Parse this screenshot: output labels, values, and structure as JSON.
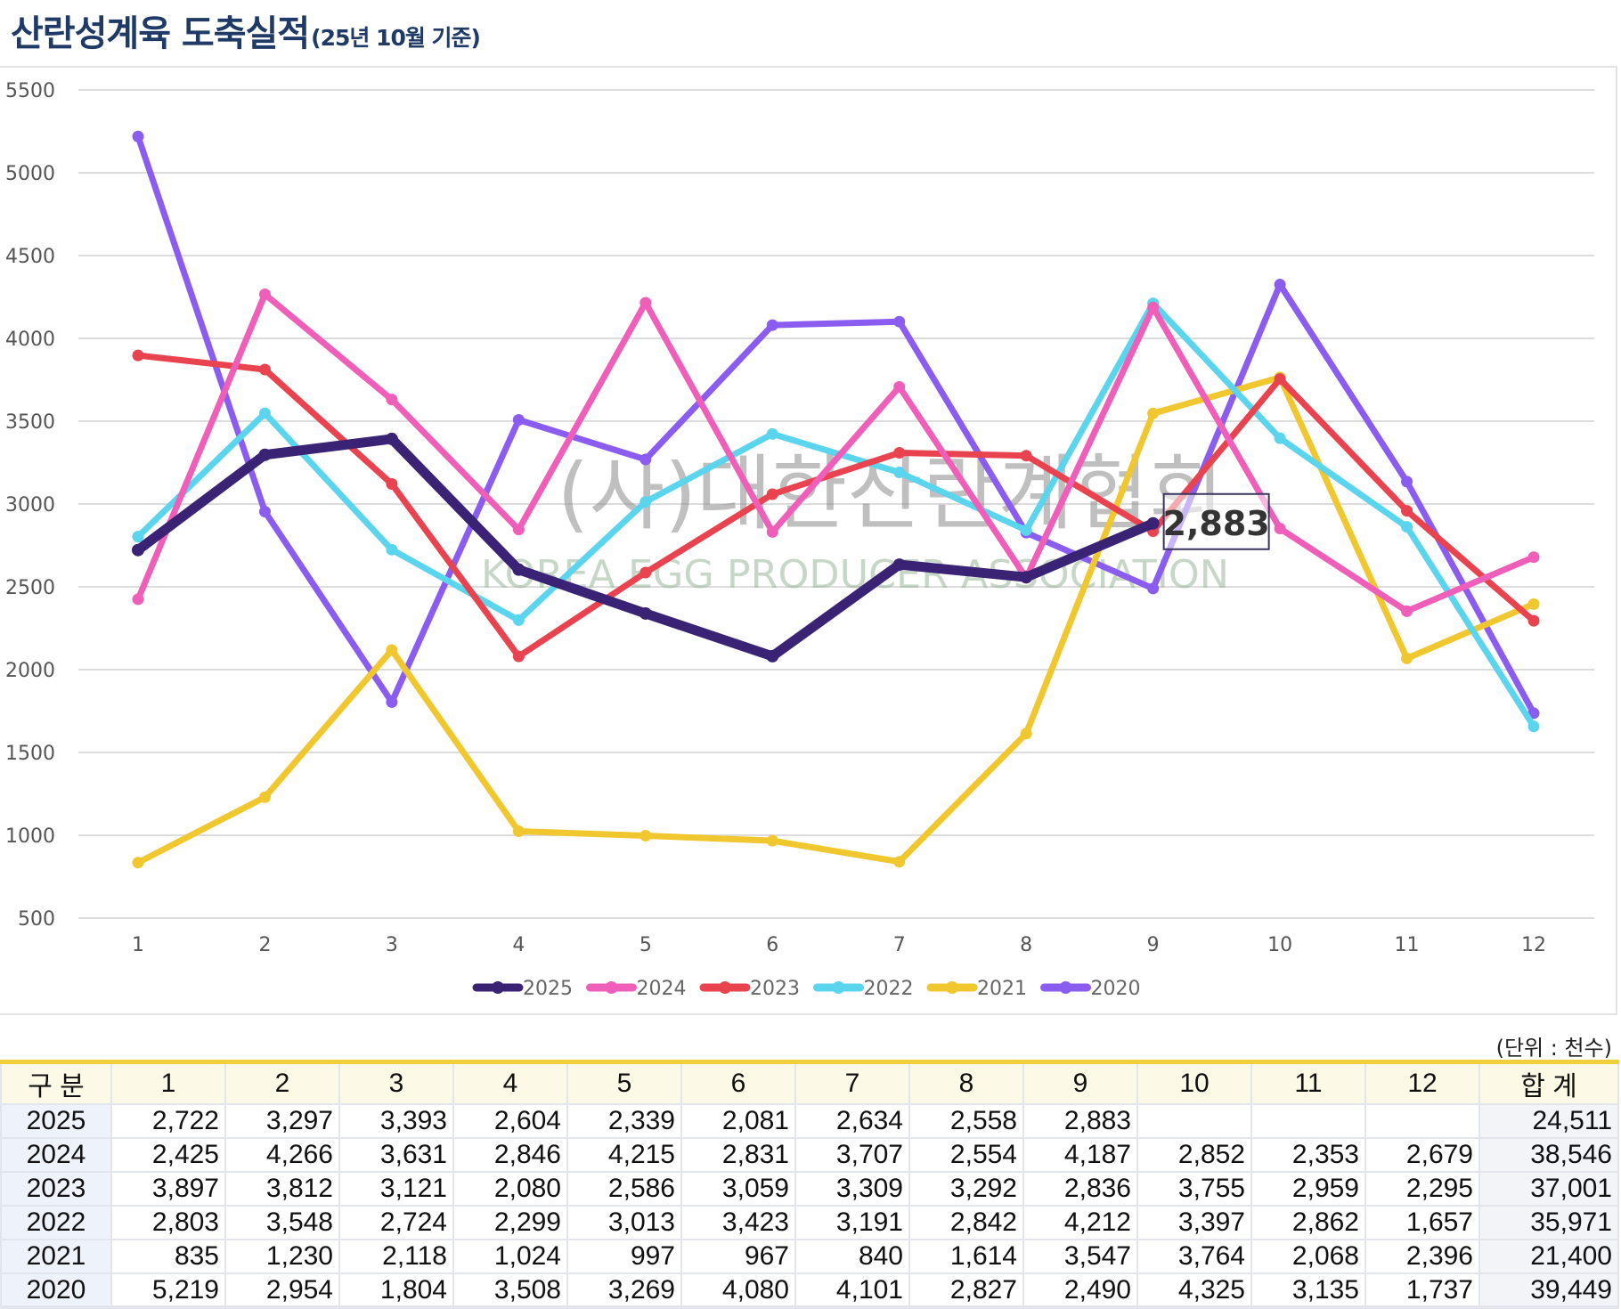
{
  "title": {
    "main": "산란성계육 도축실적",
    "sub": "(25년 10월 기준)"
  },
  "unit_label": "(단위 : 천수)",
  "watermark": {
    "korean": "(사)대한산란계협회",
    "english": "KOREA EGG PRODUCER ASSOCIATION"
  },
  "chart_data": {
    "type": "line",
    "title": "산란성계육 도축실적",
    "xlabel": "",
    "ylabel": "",
    "categories": [
      "1",
      "2",
      "3",
      "4",
      "5",
      "6",
      "7",
      "8",
      "9",
      "10",
      "11",
      "12"
    ],
    "ylim": [
      500,
      5500
    ],
    "yticks": [
      500,
      1000,
      1500,
      2000,
      2500,
      3000,
      3500,
      4000,
      4500,
      5000,
      5500
    ],
    "grid": true,
    "legend_position": "bottom",
    "annotation": {
      "series": "2025",
      "category": "9",
      "label": "2,883"
    },
    "series": [
      {
        "name": "2025",
        "color": "#3a2375",
        "values": [
          2722,
          3297,
          3393,
          2604,
          2339,
          2081,
          2634,
          2558,
          2883,
          null,
          null,
          null
        ]
      },
      {
        "name": "2024",
        "color": "#ef5fb9",
        "values": [
          2425,
          4266,
          3631,
          2846,
          4215,
          2831,
          3707,
          2554,
          4187,
          2852,
          2353,
          2679
        ]
      },
      {
        "name": "2023",
        "color": "#e8434f",
        "values": [
          3897,
          3812,
          3121,
          2080,
          2586,
          3059,
          3309,
          3292,
          2836,
          3755,
          2959,
          2295
        ]
      },
      {
        "name": "2022",
        "color": "#5bd4ee",
        "values": [
          2803,
          3548,
          2724,
          2299,
          3013,
          3423,
          3191,
          2842,
          4212,
          3397,
          2862,
          1657
        ]
      },
      {
        "name": "2021",
        "color": "#f1c72f",
        "values": [
          835,
          1230,
          2118,
          1024,
          997,
          967,
          840,
          1614,
          3547,
          3764,
          2068,
          2396
        ]
      },
      {
        "name": "2020",
        "color": "#8a5cf0",
        "values": [
          5219,
          2954,
          1804,
          3508,
          3269,
          4080,
          4101,
          2827,
          2490,
          4325,
          3135,
          1737
        ]
      }
    ]
  },
  "table": {
    "headers": [
      "구 분",
      "1",
      "2",
      "3",
      "4",
      "5",
      "6",
      "7",
      "8",
      "9",
      "10",
      "11",
      "12",
      "합 계"
    ],
    "rows": [
      {
        "year": "2025",
        "cells": [
          "2,722",
          "3,297",
          "3,393",
          "2,604",
          "2,339",
          "2,081",
          "2,634",
          "2,558",
          "2,883",
          "",
          "",
          ""
        ],
        "total": "24,511"
      },
      {
        "year": "2024",
        "cells": [
          "2,425",
          "4,266",
          "3,631",
          "2,846",
          "4,215",
          "2,831",
          "3,707",
          "2,554",
          "4,187",
          "2,852",
          "2,353",
          "2,679"
        ],
        "total": "38,546"
      },
      {
        "year": "2023",
        "cells": [
          "3,897",
          "3,812",
          "3,121",
          "2,080",
          "2,586",
          "3,059",
          "3,309",
          "3,292",
          "2,836",
          "3,755",
          "2,959",
          "2,295"
        ],
        "total": "37,001"
      },
      {
        "year": "2022",
        "cells": [
          "2,803",
          "3,548",
          "2,724",
          "2,299",
          "3,013",
          "3,423",
          "3,191",
          "2,842",
          "4,212",
          "3,397",
          "2,862",
          "1,657"
        ],
        "total": "35,971"
      },
      {
        "year": "2021",
        "cells": [
          "835",
          "1,230",
          "2,118",
          "1,024",
          "997",
          "967",
          "840",
          "1,614",
          "3,547",
          "3,764",
          "2,068",
          "2,396"
        ],
        "total": "21,400"
      },
      {
        "year": "2020",
        "cells": [
          "5,219",
          "2,954",
          "1,804",
          "3,508",
          "3,269",
          "4,080",
          "4,101",
          "2,827",
          "2,490",
          "4,325",
          "3,135",
          "1,737"
        ],
        "total": "39,449"
      }
    ]
  }
}
